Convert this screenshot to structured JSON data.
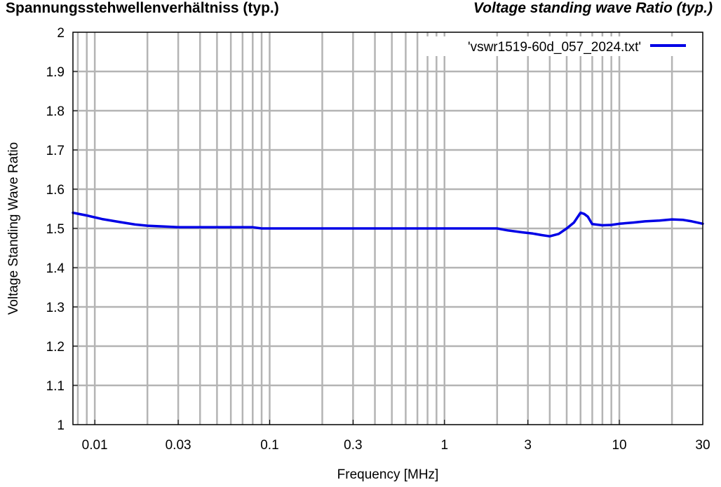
{
  "header": {
    "title_de": "Spannungsstehwellenverhältniss (typ.)",
    "title_en": "Voltage standing wave Ratio (typ.)"
  },
  "chart_data": {
    "type": "line",
    "title": "",
    "xlabel": "Frequency [MHz]",
    "ylabel": "Voltage Standing Wave Ratio",
    "xscale": "log",
    "xlim": [
      0.0075,
      30
    ],
    "ylim": [
      1,
      2
    ],
    "xticks": [
      {
        "value": 0.01,
        "label": "0.01"
      },
      {
        "value": 0.03,
        "label": "0.03"
      },
      {
        "value": 0.1,
        "label": "0.1"
      },
      {
        "value": 0.3,
        "label": "0.3"
      },
      {
        "value": 1,
        "label": "1"
      },
      {
        "value": 3,
        "label": "3"
      },
      {
        "value": 10,
        "label": "10"
      },
      {
        "value": 30,
        "label": "30"
      }
    ],
    "yticks": [
      {
        "value": 1,
        "label": "1"
      },
      {
        "value": 1.1,
        "label": "1.1"
      },
      {
        "value": 1.2,
        "label": "1.2"
      },
      {
        "value": 1.3,
        "label": "1.3"
      },
      {
        "value": 1.4,
        "label": "1.4"
      },
      {
        "value": 1.5,
        "label": "1.5"
      },
      {
        "value": 1.6,
        "label": "1.6"
      },
      {
        "value": 1.7,
        "label": "1.7"
      },
      {
        "value": 1.8,
        "label": "1.8"
      },
      {
        "value": 1.9,
        "label": "1.9"
      },
      {
        "value": 2,
        "label": "2"
      }
    ],
    "grid": true,
    "legend_position": "top-right",
    "series": [
      {
        "name": "'vswr1519-60d_057_2024.txt'",
        "color": "#0000e6",
        "x": [
          0.0075,
          0.009,
          0.011,
          0.014,
          0.017,
          0.02,
          0.025,
          0.03,
          0.05,
          0.08,
          0.09,
          0.1,
          0.3,
          1,
          2,
          2.3,
          2.8,
          3.2,
          3.6,
          4.0,
          4.5,
          5.0,
          5.5,
          6.0,
          6.3,
          6.6,
          7.0,
          8.0,
          9.0,
          10,
          12,
          14,
          17,
          20,
          23,
          26,
          30
        ],
        "y": [
          1.54,
          1.533,
          1.524,
          1.516,
          1.51,
          1.507,
          1.505,
          1.503,
          1.503,
          1.503,
          1.5,
          1.5,
          1.5,
          1.5,
          1.5,
          1.495,
          1.49,
          1.487,
          1.483,
          1.48,
          1.486,
          1.5,
          1.515,
          1.54,
          1.537,
          1.53,
          1.511,
          1.508,
          1.509,
          1.512,
          1.515,
          1.518,
          1.52,
          1.523,
          1.522,
          1.518,
          1.512
        ]
      }
    ]
  }
}
